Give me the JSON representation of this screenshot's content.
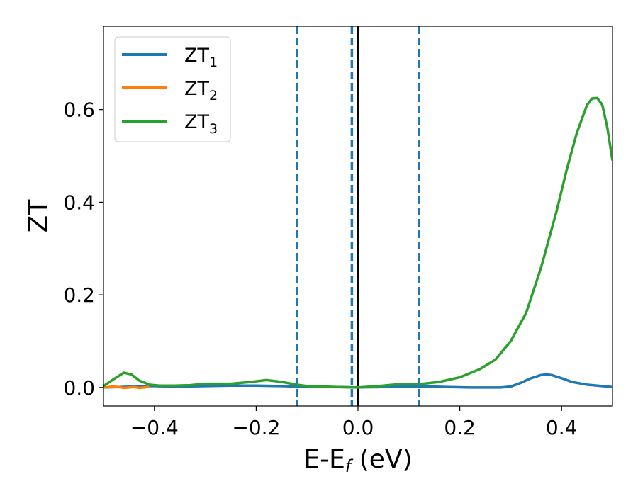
{
  "chart_data": {
    "type": "line",
    "title": "",
    "xlabel": {
      "main": "E-E",
      "sub": "f",
      "suffix": " (eV)"
    },
    "ylabel": "ZT",
    "xlim": [
      -0.5,
      0.5
    ],
    "ylim": [
      -0.04,
      0.78
    ],
    "xticks": [
      -0.4,
      -0.2,
      0.0,
      0.2,
      0.4
    ],
    "xtick_labels": [
      "−0.4",
      "−0.2",
      "0.0",
      "0.2",
      "0.4"
    ],
    "yticks": [
      0.0,
      0.2,
      0.4,
      0.6
    ],
    "ytick_labels": [
      "0.0",
      "0.2",
      "0.4",
      "0.6"
    ],
    "grid": false,
    "legend_position": "top-left",
    "vlines_dashed": [
      -0.12,
      -0.012,
      0.12
    ],
    "vline_solid": 0.0,
    "series": [
      {
        "name": "ZT",
        "name_sub": "1",
        "color": "#1f77b4",
        "x": [
          -0.5,
          -0.47,
          -0.44,
          -0.42,
          -0.4,
          -0.37,
          -0.34,
          -0.3,
          -0.25,
          -0.2,
          -0.15,
          -0.12,
          -0.08,
          -0.04,
          0.0,
          0.05,
          0.1,
          0.14,
          0.18,
          0.22,
          0.26,
          0.28,
          0.3,
          0.32,
          0.34,
          0.36,
          0.37,
          0.38,
          0.4,
          0.42,
          0.45,
          0.48,
          0.5
        ],
        "y": [
          0.0,
          0.001,
          0.002,
          0.003,
          0.003,
          0.002,
          0.002,
          0.003,
          0.004,
          0.004,
          0.003,
          0.002,
          0.001,
          0.001,
          0.0,
          0.001,
          0.002,
          0.002,
          0.001,
          0.0,
          0.0,
          0.0,
          0.002,
          0.01,
          0.02,
          0.027,
          0.028,
          0.027,
          0.02,
          0.012,
          0.006,
          0.003,
          0.001
        ]
      },
      {
        "name": "ZT",
        "name_sub": "2",
        "color": "#ff7f0e",
        "x": [
          -0.5,
          -0.48,
          -0.47,
          -0.46,
          -0.45,
          -0.44,
          -0.43,
          -0.42,
          -0.41
        ],
        "y": [
          0.0,
          0.002,
          0.001,
          -0.001,
          0.0,
          0.001,
          -0.001,
          0.0,
          0.002
        ]
      },
      {
        "name": "ZT",
        "name_sub": "3",
        "color": "#2ca02c",
        "x": [
          -0.5,
          -0.48,
          -0.46,
          -0.445,
          -0.43,
          -0.41,
          -0.39,
          -0.36,
          -0.33,
          -0.3,
          -0.25,
          -0.21,
          -0.18,
          -0.15,
          -0.12,
          -0.1,
          -0.07,
          -0.04,
          0.0,
          0.04,
          0.08,
          0.12,
          0.16,
          0.2,
          0.24,
          0.27,
          0.3,
          0.33,
          0.36,
          0.39,
          0.41,
          0.43,
          0.45,
          0.46,
          0.47,
          0.48,
          0.49,
          0.5
        ],
        "y": [
          0.003,
          0.018,
          0.032,
          0.028,
          0.015,
          0.006,
          0.004,
          0.004,
          0.005,
          0.008,
          0.008,
          0.012,
          0.016,
          0.012,
          0.006,
          0.003,
          0.002,
          0.001,
          0.0,
          0.003,
          0.007,
          0.007,
          0.012,
          0.022,
          0.04,
          0.06,
          0.1,
          0.16,
          0.26,
          0.38,
          0.47,
          0.55,
          0.61,
          0.624,
          0.625,
          0.61,
          0.56,
          0.49
        ]
      }
    ]
  }
}
